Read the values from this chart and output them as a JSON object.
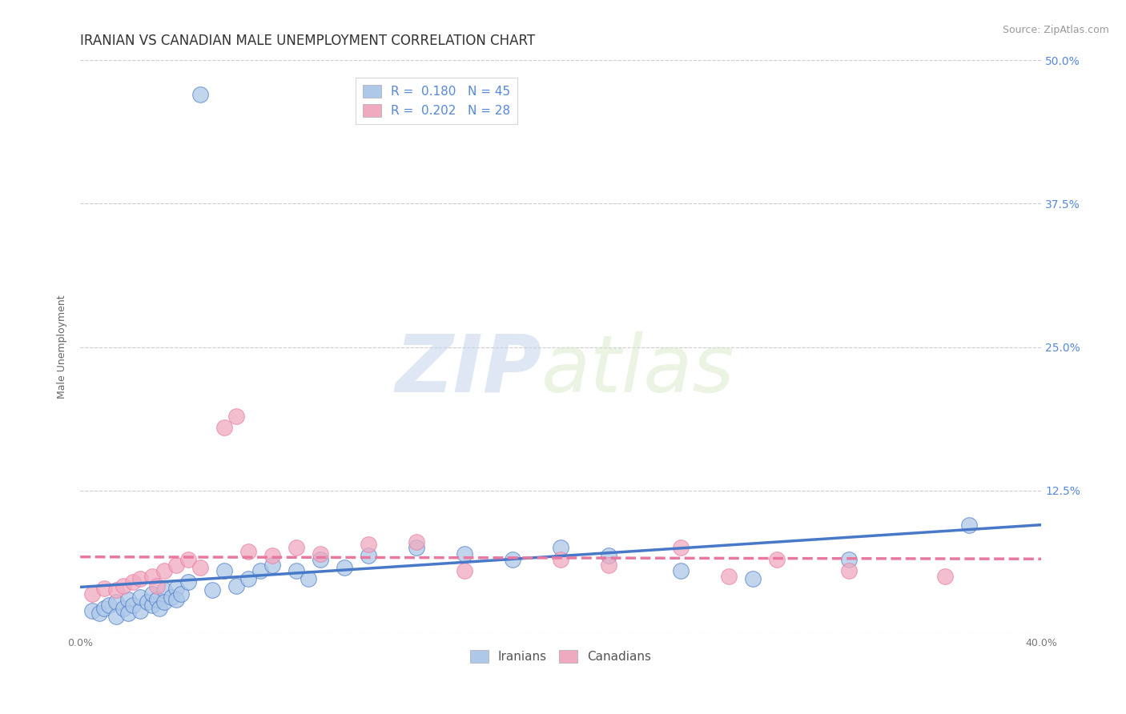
{
  "title": "IRANIAN VS CANADIAN MALE UNEMPLOYMENT CORRELATION CHART",
  "source": "Source: ZipAtlas.com",
  "ylabel": "Male Unemployment",
  "xlim": [
    0.0,
    0.4
  ],
  "ylim": [
    0.0,
    0.5
  ],
  "xticks": [
    0.0,
    0.1,
    0.2,
    0.3,
    0.4
  ],
  "xtick_labels": [
    "0.0%",
    "",
    "",
    "",
    "40.0%"
  ],
  "yticks": [
    0.0,
    0.125,
    0.25,
    0.375,
    0.5
  ],
  "ytick_labels_right": [
    "",
    "12.5%",
    "25.0%",
    "37.5%",
    "50.0%"
  ],
  "R_iranian": 0.18,
  "N_iranian": 45,
  "R_canadian": 0.202,
  "N_canadian": 28,
  "color_iranian": "#adc8e8",
  "color_canadian": "#f0aac0",
  "line_color_iranian": "#4878c8",
  "line_color_canadian": "#e878a0",
  "background_color": "#ffffff",
  "watermark_zip": "ZIP",
  "watermark_atlas": "atlas",
  "watermark_color": "#dce6f0",
  "legend_label_iranian": "Iranians",
  "legend_label_canadian": "Canadians",
  "iranian_x": [
    0.005,
    0.008,
    0.01,
    0.012,
    0.015,
    0.015,
    0.018,
    0.02,
    0.02,
    0.022,
    0.025,
    0.025,
    0.028,
    0.03,
    0.03,
    0.032,
    0.033,
    0.035,
    0.035,
    0.038,
    0.04,
    0.04,
    0.042,
    0.045,
    0.05,
    0.055,
    0.06,
    0.065,
    0.07,
    0.075,
    0.08,
    0.09,
    0.095,
    0.1,
    0.11,
    0.12,
    0.14,
    0.16,
    0.18,
    0.2,
    0.22,
    0.25,
    0.28,
    0.32,
    0.37
  ],
  "iranian_y": [
    0.02,
    0.018,
    0.022,
    0.025,
    0.028,
    0.015,
    0.022,
    0.03,
    0.018,
    0.025,
    0.02,
    0.032,
    0.028,
    0.025,
    0.035,
    0.03,
    0.022,
    0.038,
    0.028,
    0.032,
    0.04,
    0.03,
    0.035,
    0.045,
    0.47,
    0.038,
    0.055,
    0.042,
    0.048,
    0.055,
    0.06,
    0.055,
    0.048,
    0.065,
    0.058,
    0.068,
    0.075,
    0.07,
    0.065,
    0.075,
    0.068,
    0.055,
    0.048,
    0.065,
    0.095
  ],
  "canadian_x": [
    0.005,
    0.01,
    0.015,
    0.018,
    0.022,
    0.025,
    0.03,
    0.032,
    0.035,
    0.04,
    0.045,
    0.05,
    0.06,
    0.065,
    0.07,
    0.08,
    0.09,
    0.1,
    0.12,
    0.14,
    0.16,
    0.2,
    0.22,
    0.25,
    0.27,
    0.29,
    0.32,
    0.36
  ],
  "canadian_y": [
    0.035,
    0.04,
    0.038,
    0.042,
    0.045,
    0.048,
    0.05,
    0.042,
    0.055,
    0.06,
    0.065,
    0.058,
    0.18,
    0.19,
    0.072,
    0.068,
    0.075,
    0.07,
    0.078,
    0.08,
    0.055,
    0.065,
    0.06,
    0.075,
    0.05,
    0.065,
    0.055,
    0.05
  ],
  "title_fontsize": 12,
  "axis_label_fontsize": 9,
  "tick_fontsize": 9,
  "legend_fontsize": 11,
  "source_fontsize": 9,
  "ytick_color": "#5588dd",
  "xtick_color": "#777777"
}
